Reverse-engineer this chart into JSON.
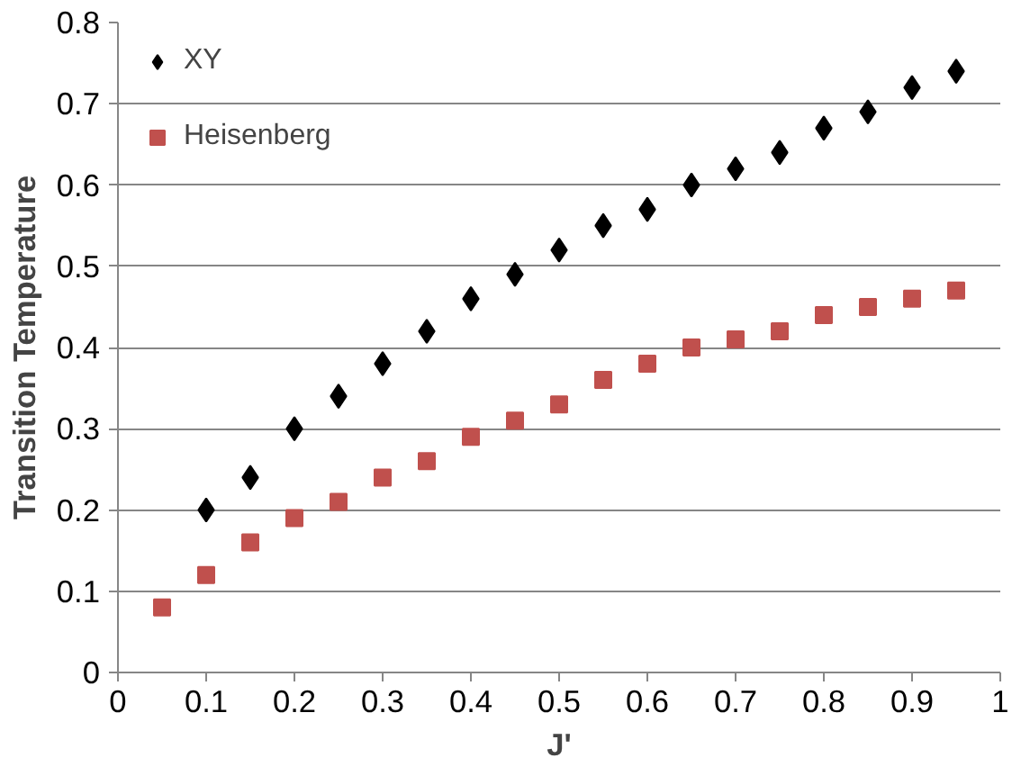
{
  "chart_data": {
    "type": "scatter",
    "xlabel": "J'",
    "ylabel": "Transition Temperature",
    "xlim": [
      0,
      1
    ],
    "xticks": [
      0,
      0.1,
      0.2,
      0.3,
      0.4,
      0.5,
      0.6,
      0.7,
      0.8,
      0.9,
      1
    ],
    "ylim": [
      0,
      0.8
    ],
    "yticks": [
      0,
      0.1,
      0.2,
      0.3,
      0.4,
      0.5,
      0.6,
      0.7,
      0.8
    ],
    "grid": "y",
    "legend": "top left",
    "series": [
      {
        "name": "XY",
        "color": "#000000",
        "marker": "diamond",
        "x": [
          0.1,
          0.15,
          0.2,
          0.25,
          0.3,
          0.35,
          0.4,
          0.45,
          0.5,
          0.55,
          0.6,
          0.65,
          0.7,
          0.75,
          0.8,
          0.85,
          0.9,
          0.95
        ],
        "values": [
          0.2,
          0.24,
          0.3,
          0.34,
          0.38,
          0.42,
          0.46,
          0.49,
          0.52,
          0.55,
          0.57,
          0.6,
          0.62,
          0.64,
          0.67,
          0.69,
          0.72,
          0.74
        ]
      },
      {
        "name": "Heisenberg",
        "color": "#c0504d",
        "marker": "square",
        "x": [
          0.05,
          0.1,
          0.15,
          0.2,
          0.25,
          0.3,
          0.35,
          0.4,
          0.45,
          0.5,
          0.55,
          0.6,
          0.65,
          0.7,
          0.75,
          0.8,
          0.85,
          0.9,
          0.95
        ],
        "values": [
          0.08,
          0.12,
          0.16,
          0.19,
          0.21,
          0.24,
          0.26,
          0.29,
          0.31,
          0.33,
          0.36,
          0.38,
          0.4,
          0.41,
          0.42,
          0.44,
          0.45,
          0.46,
          0.47
        ]
      }
    ]
  }
}
